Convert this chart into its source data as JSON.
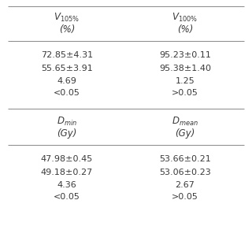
{
  "col1_header_line1": "$V_{105\\%}$",
  "col1_header_line2": "(%)",
  "col2_header_line1": "$V_{100\\%}$",
  "col2_header_line2": "(%)",
  "col3_header_line1": "$D_{min}$",
  "col3_header_line2": "(Gy)",
  "col4_header_line1": "$D_{mean}$",
  "col4_header_line2": "(Gy)",
  "section1_col1": [
    "72.85±4.31",
    "55.65±3.91",
    "4.69",
    "<0.05"
  ],
  "section1_col2": [
    "95.23±0.11",
    "95.38±1.40",
    "1.25",
    ">0.05"
  ],
  "section2_col1": [
    "47.98±0.45",
    "49.18±0.27",
    "4.36",
    "<0.05"
  ],
  "section2_col2": [
    "53.66±0.21",
    "53.06±0.23",
    "2.67",
    ">0.05"
  ],
  "text_color": "#3a3a3a",
  "line_color": "#888888",
  "font_size": 8.0,
  "header_font_size": 8.5,
  "figsize": [
    3.2,
    3.2
  ],
  "dpi": 100
}
